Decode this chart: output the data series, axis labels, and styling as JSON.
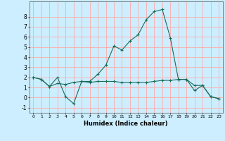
{
  "xlabel": "Humidex (Indice chaleur)",
  "background_color": "#cceeff",
  "grid_color": "#ffaaaa",
  "line_color": "#1a6b5a",
  "x": [
    0,
    1,
    2,
    3,
    4,
    5,
    6,
    7,
    8,
    9,
    10,
    11,
    12,
    13,
    14,
    15,
    16,
    17,
    18,
    19,
    20,
    21,
    22,
    23
  ],
  "line1": [
    2.0,
    1.8,
    1.1,
    2.0,
    0.1,
    -0.6,
    1.6,
    1.6,
    2.3,
    3.2,
    5.1,
    4.7,
    5.6,
    6.2,
    7.7,
    8.5,
    8.7,
    5.9,
    1.8,
    1.8,
    1.2,
    1.2,
    0.1,
    -0.1
  ],
  "line2": [
    2.0,
    1.8,
    1.1,
    1.4,
    1.3,
    1.5,
    1.6,
    1.5,
    1.6,
    1.6,
    1.6,
    1.5,
    1.5,
    1.5,
    1.5,
    1.6,
    1.7,
    1.7,
    1.8,
    1.8,
    0.7,
    1.2,
    0.1,
    -0.1
  ],
  "ylim": [
    -1.5,
    9.5
  ],
  "yticks": [
    -1,
    0,
    1,
    2,
    3,
    4,
    5,
    6,
    7,
    8
  ],
  "xlim": [
    -0.5,
    23.5
  ],
  "figsize": [
    3.2,
    2.0
  ],
  "dpi": 100
}
